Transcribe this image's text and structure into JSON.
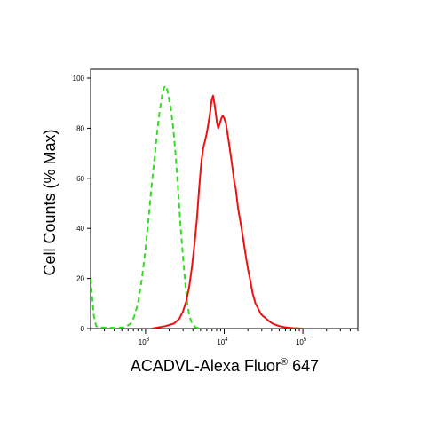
{
  "chart_data": {
    "type": "line",
    "title": "",
    "xlabel": "ACADVL-Alexa Fluor",
    "xlabel_sup": "®",
    "xlabel_suffix": " 647",
    "ylabel": "Cell Counts (% Max)",
    "x_scale": "log",
    "xlim": [
      200,
      500000
    ],
    "ylim": [
      0,
      100
    ],
    "y_ticks": [
      {
        "value": 0,
        "label": "0"
      },
      {
        "value": 20,
        "label": "20"
      },
      {
        "value": 40,
        "label": "40"
      },
      {
        "value": 60,
        "label": "60"
      },
      {
        "value": 80,
        "label": "80"
      },
      {
        "value": 100,
        "label": "100"
      }
    ],
    "x_major_ticks": [
      {
        "value": 1000,
        "base": "10",
        "exp": "3"
      },
      {
        "value": 10000,
        "base": "10",
        "exp": "4"
      },
      {
        "value": 100000,
        "base": "10",
        "exp": "5"
      }
    ],
    "grid": false,
    "legend": "none",
    "series": [
      {
        "color": "#33dd22",
        "dash": "dashed",
        "points": [
          [
            200,
            20
          ],
          [
            210,
            12
          ],
          [
            220,
            5
          ],
          [
            235,
            1
          ],
          [
            250,
            0.5
          ],
          [
            400,
            0.3
          ],
          [
            550,
            0.5
          ],
          [
            650,
            2
          ],
          [
            720,
            5
          ],
          [
            800,
            10
          ],
          [
            900,
            20
          ],
          [
            1000,
            32
          ],
          [
            1100,
            45
          ],
          [
            1200,
            58
          ],
          [
            1300,
            68
          ],
          [
            1400,
            78
          ],
          [
            1500,
            86
          ],
          [
            1600,
            92
          ],
          [
            1700,
            96
          ],
          [
            1800,
            97
          ],
          [
            1900,
            95
          ],
          [
            2000,
            91
          ],
          [
            2100,
            88
          ],
          [
            2250,
            80
          ],
          [
            2400,
            70
          ],
          [
            2600,
            55
          ],
          [
            2800,
            40
          ],
          [
            3000,
            28
          ],
          [
            3200,
            18
          ],
          [
            3400,
            10
          ],
          [
            3600,
            5
          ],
          [
            3900,
            2
          ],
          [
            4300,
            0.5
          ],
          [
            5000,
            0
          ]
        ]
      },
      {
        "color": "#ee1111",
        "dash": "solid",
        "points": [
          [
            1200,
            0
          ],
          [
            1800,
            1
          ],
          [
            2300,
            2
          ],
          [
            2700,
            4
          ],
          [
            3000,
            7
          ],
          [
            3300,
            11
          ],
          [
            3600,
            17
          ],
          [
            3900,
            25
          ],
          [
            4200,
            34
          ],
          [
            4500,
            44
          ],
          [
            4800,
            56
          ],
          [
            5100,
            66
          ],
          [
            5400,
            72
          ],
          [
            5700,
            75
          ],
          [
            6000,
            78
          ],
          [
            6300,
            82
          ],
          [
            6600,
            86
          ],
          [
            6900,
            91
          ],
          [
            7200,
            93
          ],
          [
            7500,
            90
          ],
          [
            7800,
            86
          ],
          [
            8100,
            82
          ],
          [
            8400,
            80
          ],
          [
            8800,
            82
          ],
          [
            9200,
            84
          ],
          [
            9600,
            85
          ],
          [
            10000,
            84
          ],
          [
            10500,
            82
          ],
          [
            11000,
            78
          ],
          [
            11500,
            74
          ],
          [
            12000,
            70
          ],
          [
            12500,
            66
          ],
          [
            13000,
            62
          ],
          [
            13500,
            58
          ],
          [
            14000,
            56
          ],
          [
            14500,
            52
          ],
          [
            15000,
            48
          ],
          [
            16000,
            43
          ],
          [
            17000,
            38
          ],
          [
            18000,
            33
          ],
          [
            19000,
            28
          ],
          [
            20000,
            24
          ],
          [
            21500,
            19
          ],
          [
            23000,
            14
          ],
          [
            25000,
            10
          ],
          [
            27000,
            8
          ],
          [
            29000,
            6
          ],
          [
            31000,
            5
          ],
          [
            34000,
            4
          ],
          [
            37000,
            3
          ],
          [
            41000,
            2
          ],
          [
            45000,
            1.5
          ],
          [
            50000,
            1
          ],
          [
            60000,
            0.5
          ],
          [
            75000,
            0.2
          ],
          [
            100000,
            0
          ]
        ]
      }
    ]
  }
}
